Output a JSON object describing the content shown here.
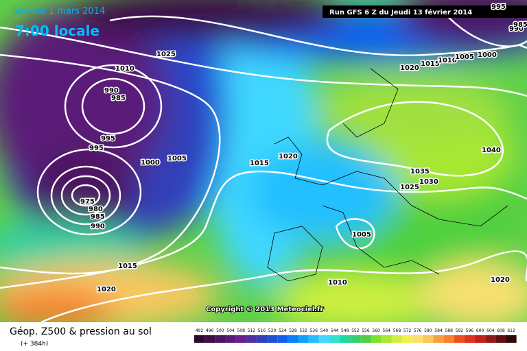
{
  "header": {
    "date": "Samedi 1 mars 2014",
    "time": "7:00 locale",
    "run": "Run GFS 6 Z du Jeudi 13 février 2014",
    "copyright": "Copyright © 2013 Meteociel.fr"
  },
  "footer": {
    "title": "Géop. Z500 & pression au sol",
    "lead_time": "(+ 384h)"
  },
  "isobar_labels": [
    "1025",
    "1010",
    "990",
    "985",
    "995",
    "995",
    "1000",
    "1005",
    "975",
    "980",
    "985",
    "990",
    "1015",
    "1020",
    "1015",
    "1020",
    "1020",
    "1015",
    "1010",
    "1005",
    "1000",
    "990",
    "985",
    "995",
    "1040",
    "1035",
    "1030",
    "1025",
    "1005",
    "1010",
    "1020"
  ],
  "legend": {
    "values": [
      492,
      496,
      500,
      504,
      508,
      512,
      516,
      520,
      524,
      528,
      532,
      536,
      540,
      544,
      548,
      552,
      556,
      560,
      564,
      568,
      572,
      576,
      580,
      584,
      588,
      592,
      596,
      600,
      604,
      608,
      612
    ],
    "colors": [
      "#2a0a2e",
      "#3a1045",
      "#4b1660",
      "#5a1a78",
      "#6b1e90",
      "#5030a0",
      "#3040b8",
      "#2050d8",
      "#1060f0",
      "#0a80f8",
      "#10a0ff",
      "#20c0ff",
      "#40d8ff",
      "#30e0d0",
      "#20d8a0",
      "#30d070",
      "#50d040",
      "#80e030",
      "#a8e830",
      "#d0f040",
      "#f0f050",
      "#f8e070",
      "#f8c860",
      "#f8a040",
      "#f88030",
      "#f05020",
      "#e03020",
      "#c02020",
      "#901818",
      "#601010",
      "#300808"
    ]
  }
}
